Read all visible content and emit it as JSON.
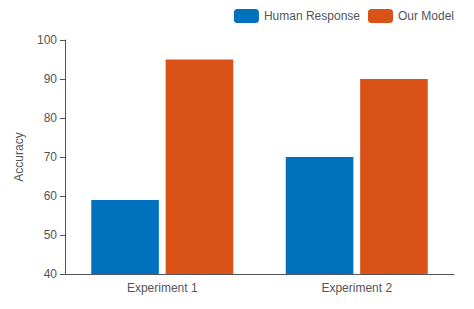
{
  "chart_data": {
    "type": "bar",
    "categories": [
      "Experiment 1",
      "Experiment 2"
    ],
    "series": [
      {
        "name": "Human Response",
        "color": "#0072BD",
        "values": [
          59,
          70
        ]
      },
      {
        "name": "Our Model",
        "color": "#D95319",
        "values": [
          95,
          90
        ]
      }
    ],
    "ylabel": "Accuracy",
    "ylim": [
      40,
      100
    ],
    "yticks": [
      40,
      50,
      60,
      70,
      80,
      90,
      100
    ],
    "grid": false,
    "legend": "upper right"
  }
}
